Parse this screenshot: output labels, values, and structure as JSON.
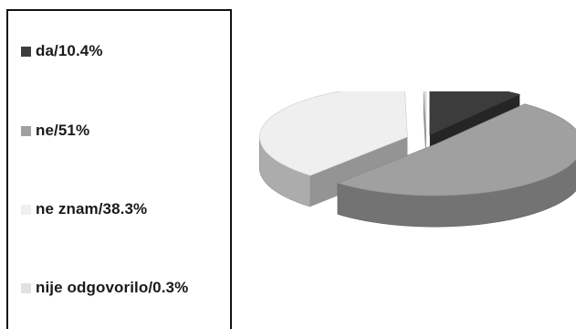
{
  "chart_data": {
    "type": "pie",
    "style": "3d-exploded",
    "slices": [
      {
        "label": "da/10.4%",
        "value": 10.4,
        "color": "#3c3c3c"
      },
      {
        "label": "ne/51%",
        "value": 51,
        "color": "#a0a0a0"
      },
      {
        "label": "ne znam/38.3%",
        "value": 38.3,
        "color": "#efefef"
      },
      {
        "label": "nije odgovorilo/0.3%",
        "value": 0.3,
        "color": "#e2e2e2"
      }
    ],
    "legend_position": "left"
  }
}
